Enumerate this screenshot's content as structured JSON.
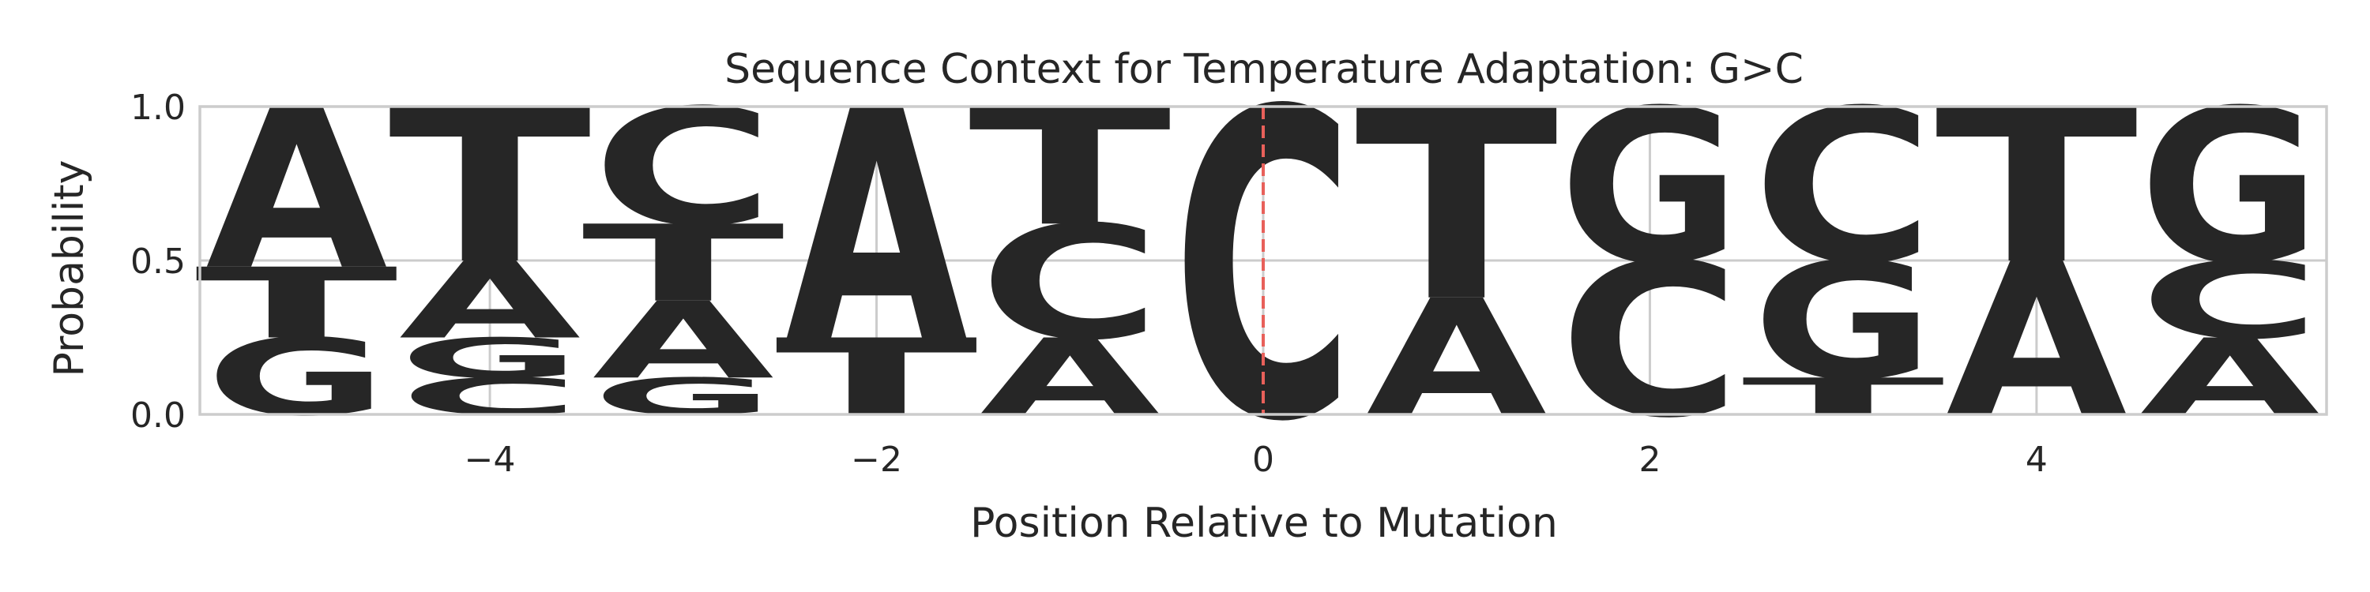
{
  "chart_data": {
    "type": "sequence-logo",
    "title": "Sequence Context for Temperature Adaptation: G>C",
    "xlabel": "Position Relative to Mutation",
    "ylabel": "Probability",
    "xlim": [
      -5.5,
      5.5
    ],
    "ylim": [
      0,
      1
    ],
    "xticks": [
      {
        "value": -4,
        "label": "−4"
      },
      {
        "value": -2,
        "label": "−2"
      },
      {
        "value": 0,
        "label": "0"
      },
      {
        "value": 2,
        "label": "2"
      },
      {
        "value": 4,
        "label": "4"
      }
    ],
    "yticks": [
      {
        "value": 0,
        "label": "0.0"
      },
      {
        "value": 0.5,
        "label": "0.5"
      },
      {
        "value": 1,
        "label": "1.0"
      }
    ],
    "grid": true,
    "mutation_position": 0,
    "colors": {
      "A": "#008000",
      "C": "#0000ff",
      "G": "#ffa500",
      "T": "#ff0000",
      "mutation_line": "#e8605a"
    },
    "positions": [
      {
        "x": -5,
        "stack": [
          {
            "base": "G",
            "p": 0.25
          },
          {
            "base": "T",
            "p": 0.23
          },
          {
            "base": "A",
            "p": 0.52
          }
        ]
      },
      {
        "x": -4,
        "stack": [
          {
            "base": "C",
            "p": 0.12
          },
          {
            "base": "G",
            "p": 0.13
          },
          {
            "base": "A",
            "p": 0.25
          },
          {
            "base": "T",
            "p": 0.5
          }
        ]
      },
      {
        "x": -3,
        "stack": [
          {
            "base": "G",
            "p": 0.12
          },
          {
            "base": "A",
            "p": 0.25
          },
          {
            "base": "T",
            "p": 0.25
          },
          {
            "base": "C",
            "p": 0.38
          }
        ]
      },
      {
        "x": -2,
        "stack": [
          {
            "base": "T",
            "p": 0.25
          },
          {
            "base": "A",
            "p": 0.75
          }
        ]
      },
      {
        "x": -1,
        "stack": [
          {
            "base": "A",
            "p": 0.25
          },
          {
            "base": "C",
            "p": 0.37
          },
          {
            "base": "T",
            "p": 0.38
          }
        ]
      },
      {
        "x": 0,
        "stack": [
          {
            "base": "C",
            "p": 1.0
          }
        ]
      },
      {
        "x": 1,
        "stack": [
          {
            "base": "A",
            "p": 0.38
          },
          {
            "base": "T",
            "p": 0.62
          }
        ]
      },
      {
        "x": 2,
        "stack": [
          {
            "base": "C",
            "p": 0.5
          },
          {
            "base": "G",
            "p": 0.5
          }
        ]
      },
      {
        "x": 3,
        "stack": [
          {
            "base": "T",
            "p": 0.12
          },
          {
            "base": "G",
            "p": 0.38
          },
          {
            "base": "C",
            "p": 0.5
          }
        ]
      },
      {
        "x": 4,
        "stack": [
          {
            "base": "A",
            "p": 0.5
          },
          {
            "base": "T",
            "p": 0.5
          }
        ]
      },
      {
        "x": 5,
        "stack": [
          {
            "base": "A",
            "p": 0.25
          },
          {
            "base": "C",
            "p": 0.25
          },
          {
            "base": "G",
            "p": 0.5
          }
        ]
      }
    ]
  }
}
